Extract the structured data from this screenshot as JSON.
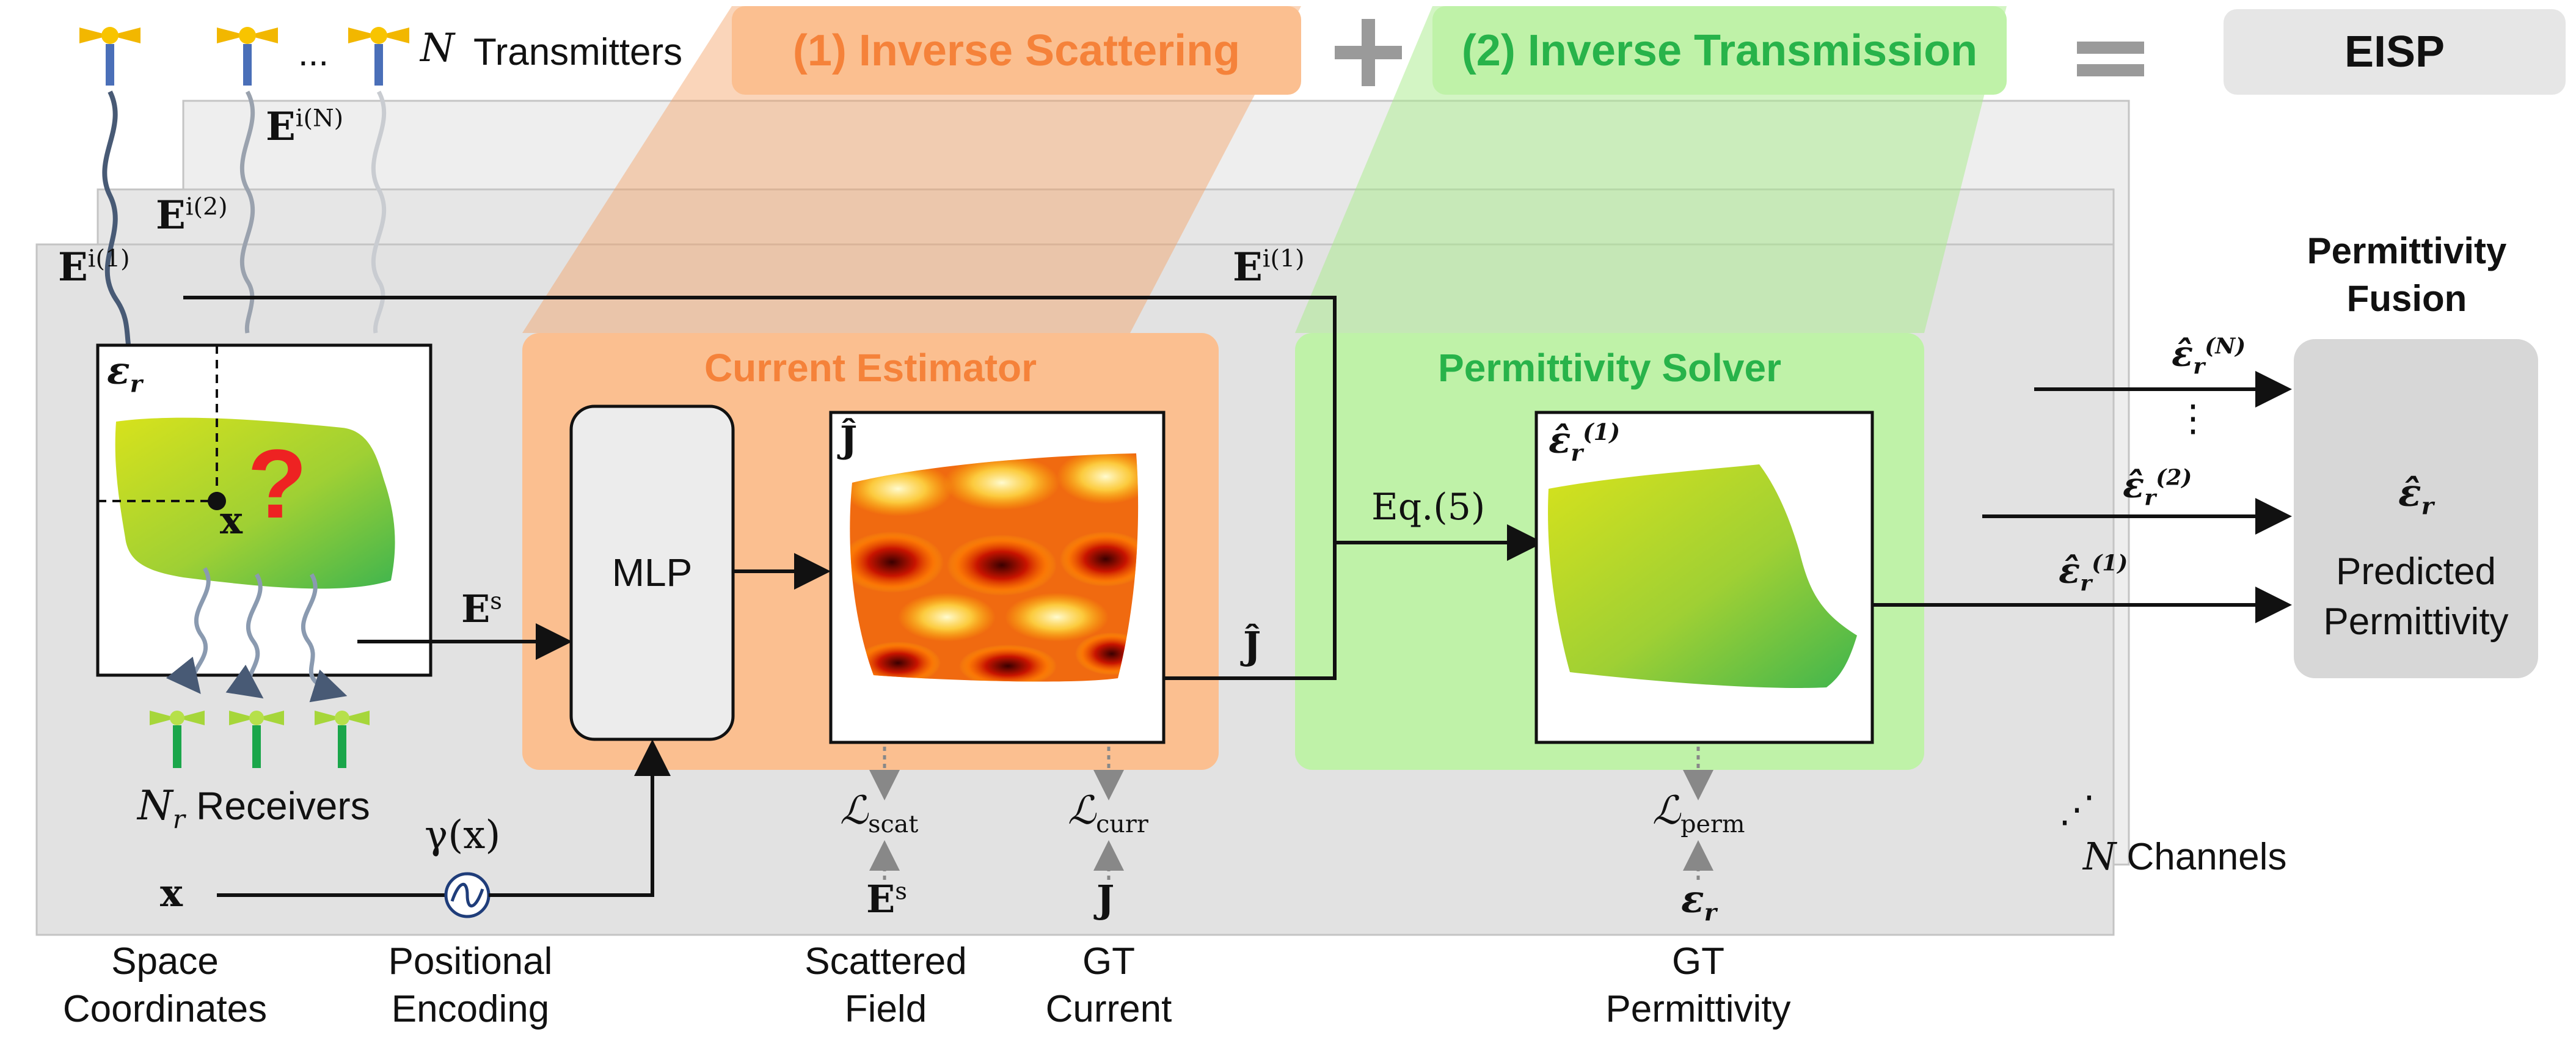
{
  "header": {
    "transmitters_n": "N",
    "transmitters_label": "Transmitters",
    "ellipsis": "...",
    "stage1": "(1) Inverse Scattering",
    "plus": "+",
    "stage2": "(2) Inverse Transmission",
    "equals": "=",
    "result": "EISP"
  },
  "fields": {
    "incident_1": "E",
    "incident_1_sup": "i(1)",
    "incident_2": "E",
    "incident_2_sup": "i(2)",
    "incident_n": "E",
    "incident_n_sup": "i(N)",
    "incident_1_right": "E",
    "incident_1_right_sup": "i(1)",
    "scattered": "E",
    "scattered_sup": "s"
  },
  "input_panel": {
    "eps_label": "ε",
    "eps_sub": "r",
    "query_mark": "?",
    "x_label": "x"
  },
  "receivers": {
    "n": "N",
    "n_sub": "r",
    "label": "Receivers"
  },
  "current_estimator": {
    "title": "Current Estimator",
    "mlp": "MLP",
    "j_hat": "Ĵ",
    "j_hat_out": "Ĵ"
  },
  "positional": {
    "gamma": "γ(x)",
    "x_input": "x"
  },
  "permittivity_solver": {
    "title": "Permittivity Solver",
    "eq": "Eq.(5)",
    "eps_hat": "ε̂",
    "eps_hat_sub": "r",
    "eps_hat_sup": "(1)"
  },
  "losses": {
    "scat": "ℒ",
    "scat_sub": "scat",
    "curr": "ℒ",
    "curr_sub": "curr",
    "perm": "ℒ",
    "perm_sub": "perm"
  },
  "gt": {
    "es": "E",
    "es_sup": "s",
    "j": "J",
    "eps": "ε",
    "eps_sub": "r"
  },
  "fusion": {
    "title_line1": "Permittivity",
    "title_line2": "Fusion",
    "in_n": "ε̂",
    "in_n_sub": "r",
    "in_n_sup": "(N)",
    "in_2": "ε̂",
    "in_2_sub": "r",
    "in_2_sup": "(2)",
    "in_1": "ε̂",
    "in_1_sub": "r",
    "in_1_sup": "(1)",
    "dots": "⋮",
    "out_symbol": "ε̂",
    "out_sub": "r",
    "out_line1": "Predicted",
    "out_line2": "Permittivity"
  },
  "channels": {
    "dots": "⋰",
    "n": "N",
    "label": "Channels"
  },
  "captions": {
    "space_1": "Space",
    "space_2": "Coordinates",
    "pos_1": "Positional",
    "pos_2": "Encoding",
    "scat_1": "Scattered",
    "scat_2": "Field",
    "gtc_1": "GT",
    "gtc_2": "Current",
    "gtp_1": "GT",
    "gtp_2": "Permittivity"
  },
  "colors": {
    "stage1": "#f5823a",
    "stage1_bg": "#fbbf90",
    "stage2": "#28b34a",
    "stage2_bg": "#bff2a8",
    "panel_gray": "#e8e8e8",
    "question": "#ee2222",
    "antenna_blue": "#4a6fb8",
    "antenna_green": "#1aa64a",
    "wave": "#485a75"
  }
}
